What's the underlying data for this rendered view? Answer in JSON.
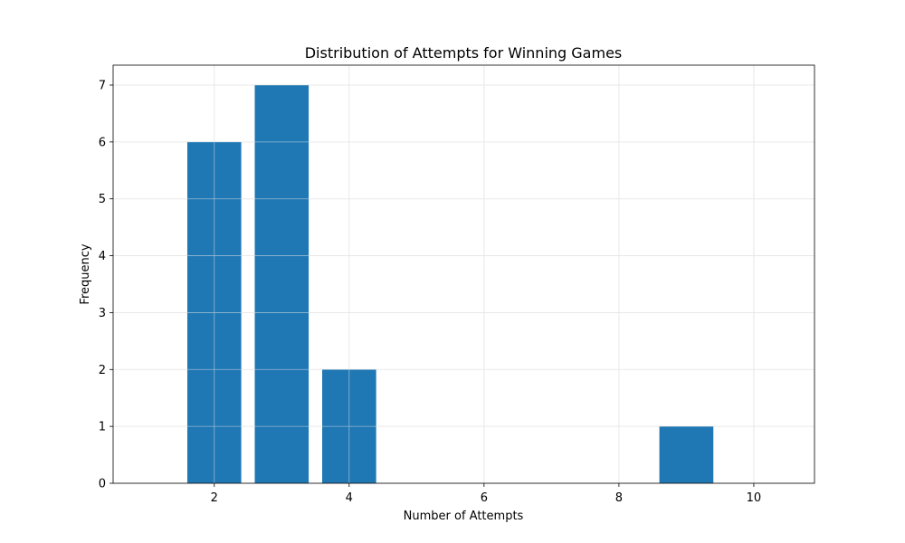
{
  "chart_data": {
    "type": "bar",
    "title": "Distribution of Attempts for Winning Games",
    "xlabel": "Number of Attempts",
    "ylabel": "Frequency",
    "x": [
      2,
      3,
      4,
      9
    ],
    "values": [
      6,
      7,
      2,
      1
    ],
    "bar_width": 0.8,
    "xlim": [
      0.5,
      10.9
    ],
    "ylim": [
      0,
      7.35
    ],
    "xticks": [
      2,
      4,
      6,
      8,
      10
    ],
    "yticks": [
      0,
      1,
      2,
      3,
      4,
      5,
      6,
      7
    ],
    "grid": true,
    "bar_color": "#1f77b4",
    "grid_color": "#e6e6e6"
  }
}
